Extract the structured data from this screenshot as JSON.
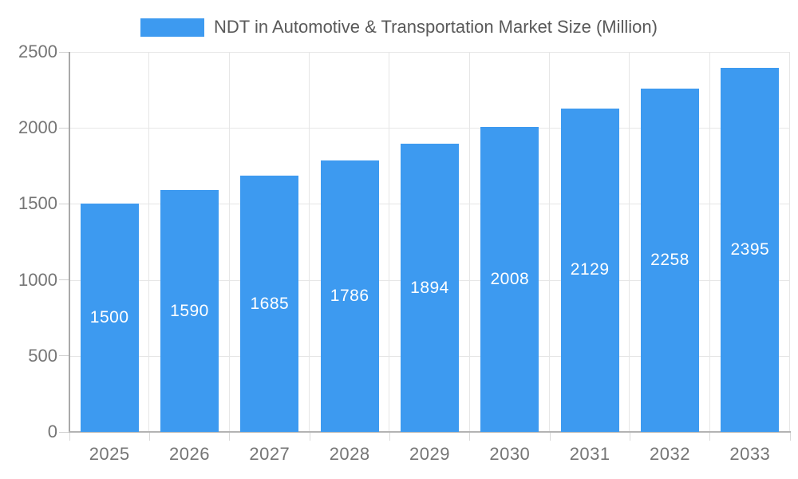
{
  "colors": {
    "accent": "#3D9AF0",
    "gridline": "#e6e6e6",
    "axis_line": "#a9a9a9",
    "axis_text": "#757575",
    "title_text": "#595959",
    "bar_value_text": "#ffffff"
  },
  "chart_data": {
    "type": "bar",
    "title": "NDT in Automotive & Transportation Market Size (Million)",
    "categories": [
      "2025",
      "2026",
      "2027",
      "2028",
      "2029",
      "2030",
      "2031",
      "2032",
      "2033"
    ],
    "values": [
      1500,
      1590,
      1685,
      1786,
      1894,
      2008,
      2129,
      2258,
      2395
    ],
    "xlabel": "",
    "ylabel": "",
    "ylim": [
      0,
      2500
    ],
    "yticks": [
      0,
      500,
      1000,
      1500,
      2000,
      2500
    ],
    "grid": true,
    "legend_position": "top",
    "value_labels": "inside-center"
  }
}
